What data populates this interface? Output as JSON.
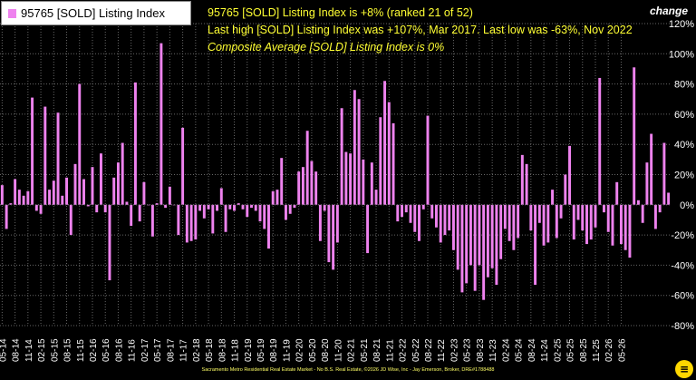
{
  "legend": {
    "label": "95765 [SOLD] Listing Index",
    "color": "#ee82ee"
  },
  "info": {
    "line1": "95765 [SOLD] Listing Index is +8% (ranked 21 of 52)",
    "line2": "Last high [SOLD] Listing Index was +107%, Mar 2017. Last low was -63%, Nov 2022",
    "line3": "Composite Average [SOLD] Listing Index is 0%"
  },
  "change_label": "change",
  "footer": "Sacramento Metro Residential Real Estate Market - No B.S. Real Estate, ©2026 JD Wise, Inc - Jay Emerson, Broker, DRE#1788488",
  "colors": {
    "background": "#000000",
    "bar": "#ee82ee",
    "text": "#ffffff",
    "info": "#ffff33",
    "grid": "#666666",
    "logo": "#ffd700"
  },
  "chart_data": {
    "type": "bar",
    "series": [
      {
        "name": "95765 [SOLD] Listing Index",
        "color": "#ee82ee"
      }
    ],
    "ylim": [
      -80,
      120
    ],
    "y_ticks": [
      -80,
      -60,
      -40,
      -20,
      0,
      20,
      40,
      60,
      80,
      100,
      120
    ],
    "y_tick_labels": [
      "-80%",
      "-60%",
      "-40%",
      "-20%",
      "0%",
      "20%",
      "40%",
      "60%",
      "80%",
      "100%",
      "120%"
    ],
    "grid": true,
    "x_tick_labels": [
      "05-14",
      "08-14",
      "11-14",
      "02-15",
      "05-15",
      "08-15",
      "11-15",
      "02-16",
      "05-16",
      "08-16",
      "11-16",
      "02-17",
      "05-17",
      "08-17",
      "11-17",
      "02-18",
      "05-18",
      "08-18",
      "11-18",
      "02-19",
      "05-19",
      "08-19",
      "11-19",
      "02-20",
      "05-20",
      "08-20",
      "11-20",
      "02-21",
      "05-21",
      "08-21",
      "11-21",
      "02-22",
      "05-22",
      "08-22",
      "11-22",
      "02-23",
      "05-23",
      "08-23",
      "11-23",
      "02-24",
      "05-24",
      "08-24",
      "11-24",
      "02-25",
      "05-25",
      "08-25",
      "11-25",
      "02-26",
      "05-26"
    ],
    "values": [
      13,
      -16,
      1,
      17,
      10,
      6,
      9,
      71,
      -4,
      -6,
      65,
      10,
      16,
      61,
      6,
      18,
      -20,
      27,
      80,
      17,
      -1,
      25,
      -5,
      34,
      -5,
      -50,
      18,
      28,
      41,
      2,
      -14,
      81,
      -11,
      15,
      0,
      -21,
      1,
      107,
      -2,
      12,
      0,
      -20,
      51,
      -25,
      -24,
      -23,
      -4,
      -9,
      -3,
      -19,
      -4,
      11,
      -18,
      -3,
      -4,
      1,
      -3,
      -8,
      -2,
      -4,
      -11,
      -16,
      -29,
      9,
      10,
      31,
      -10,
      -6,
      -2,
      22,
      25,
      49,
      29,
      22,
      -24,
      -4,
      -38,
      -43,
      -25,
      64,
      35,
      34,
      76,
      70,
      30,
      -32,
      28,
      10,
      58,
      82,
      68,
      54,
      -11,
      -8,
      -5,
      -12,
      -18,
      -24,
      -3,
      59,
      -9,
      -15,
      -25,
      -20,
      -17,
      -30,
      -43,
      -58,
      -52,
      -40,
      -57,
      -40,
      -63,
      -48,
      -42,
      -53,
      -36,
      -16,
      -24,
      -30,
      -22,
      33,
      27,
      -17,
      -53,
      -12,
      -27,
      -25,
      10,
      -22,
      -9,
      20,
      39,
      -23,
      -10,
      -17,
      -26,
      -23,
      -15,
      84,
      -5,
      -18,
      -27,
      15,
      -26,
      -30,
      -35,
      91,
      3,
      -12,
      28,
      47,
      -16,
      -5,
      41,
      8
    ]
  }
}
